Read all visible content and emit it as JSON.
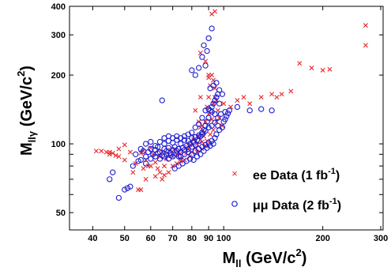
{
  "chart_data": {
    "type": "scatter",
    "xlabel": {
      "main": "M",
      "sub": "ll",
      "unit_open": " (GeV/c",
      "unit_sup": "2",
      "unit_close": ")"
    },
    "ylabel": {
      "main": "M",
      "sub": "llγ",
      "unit_open": " (GeV/c",
      "unit_sup": "2",
      "unit_close": ")"
    },
    "x_scale": "log",
    "y_scale": "log",
    "xlim": [
      34,
      305
    ],
    "ylim": [
      42,
      400
    ],
    "x_ticks": [
      {
        "v": 40,
        "label": "40"
      },
      {
        "v": 50,
        "label": "50"
      },
      {
        "v": 60,
        "label": "60"
      },
      {
        "v": 70,
        "label": "70"
      },
      {
        "v": 80,
        "label": "80"
      },
      {
        "v": 90,
        "label": "90"
      },
      {
        "v": 100,
        "label": "100"
      },
      {
        "v": 200,
        "label": "200"
      },
      {
        "v": 300,
        "label": "300"
      }
    ],
    "y_ticks": [
      {
        "v": 50,
        "label": "50"
      },
      {
        "v": 100,
        "label": "100"
      },
      {
        "v": 200,
        "label": "200"
      },
      {
        "v": 300,
        "label": "300"
      },
      {
        "v": 400,
        "label": "400"
      }
    ],
    "series": [
      {
        "name": "ee Data (1 fb",
        "name_sup": "-1",
        "name_close": ")",
        "marker": "x",
        "color": "#e8262b",
        "points": [
          [
            41,
            93
          ],
          [
            42.5,
            93
          ],
          [
            44,
            92
          ],
          [
            45,
            90
          ],
          [
            46,
            91
          ],
          [
            47,
            89
          ],
          [
            48,
            95
          ],
          [
            50,
            99
          ],
          [
            52,
            92
          ],
          [
            53,
            75
          ],
          [
            55,
            63
          ],
          [
            56,
            91
          ],
          [
            57,
            93
          ],
          [
            58,
            85
          ],
          [
            59,
            80
          ],
          [
            60,
            96
          ],
          [
            61,
            90
          ],
          [
            62,
            83
          ],
          [
            63,
            78
          ],
          [
            64,
            88
          ],
          [
            65,
            92
          ],
          [
            66,
            80
          ],
          [
            67,
            86
          ],
          [
            68,
            90
          ],
          [
            69,
            94
          ],
          [
            70,
            88
          ],
          [
            71,
            95
          ],
          [
            72,
            90
          ],
          [
            73,
            92
          ],
          [
            74,
            86
          ],
          [
            75,
            93
          ],
          [
            76,
            97
          ],
          [
            77,
            91
          ],
          [
            78,
            95
          ],
          [
            79,
            99
          ],
          [
            80,
            92
          ],
          [
            81,
            104
          ],
          [
            82,
            96
          ],
          [
            83,
            100
          ],
          [
            84,
            108
          ],
          [
            85,
            118
          ],
          [
            86,
            102
          ],
          [
            87,
            112
          ],
          [
            88,
            125
          ],
          [
            89,
            145
          ],
          [
            90,
            160
          ],
          [
            91,
            180
          ],
          [
            92,
            200
          ],
          [
            93,
            190
          ],
          [
            94,
            175
          ],
          [
            95,
            155
          ],
          [
            96,
            140
          ],
          [
            92,
            370
          ],
          [
            94,
            380
          ],
          [
            85,
            250
          ],
          [
            88,
            230
          ],
          [
            90,
            200
          ],
          [
            90,
            195
          ],
          [
            85,
            160
          ],
          [
            82,
            140
          ],
          [
            100,
            150
          ],
          [
            105,
            145
          ],
          [
            110,
            155
          ],
          [
            115,
            160
          ],
          [
            120,
            150
          ],
          [
            130,
            160
          ],
          [
            140,
            165
          ],
          [
            145,
            160
          ],
          [
            150,
            165
          ],
          [
            160,
            170
          ],
          [
            170,
            225
          ],
          [
            185,
            215
          ],
          [
            200,
            210
          ],
          [
            210,
            212
          ],
          [
            270,
            330
          ],
          [
            270,
            270
          ],
          [
            56,
            63
          ],
          [
            58,
            70
          ],
          [
            62,
            72
          ],
          [
            65,
            70
          ],
          [
            68,
            75
          ],
          [
            60,
            80
          ],
          [
            72,
            82
          ],
          [
            76,
            85
          ],
          [
            74,
            84
          ],
          [
            79,
            88
          ],
          [
            83,
            92
          ],
          [
            86,
            95
          ],
          [
            88,
            98
          ],
          [
            45,
            92
          ],
          [
            48,
            88
          ],
          [
            50,
            85
          ],
          [
            54,
            82
          ],
          [
            57,
            78
          ],
          [
            64,
            75
          ],
          [
            66,
            73
          ],
          [
            70,
            80
          ],
          [
            95,
            125
          ],
          [
            97,
            130
          ],
          [
            99,
            120
          ],
          [
            91,
            110
          ],
          [
            93,
            115
          ],
          [
            89,
            103
          ],
          [
            87,
            108
          ],
          [
            86,
            120
          ],
          [
            84,
            125
          ],
          [
            90,
            135
          ],
          [
            92,
            128
          ],
          [
            93,
            150
          ],
          [
            94,
            160
          ]
        ]
      },
      {
        "name": "μμ Data (2 fb",
        "name_sup": "-1",
        "name_close": ")",
        "marker": "o",
        "color": "#1d1dd1",
        "points": [
          [
            45,
            70
          ],
          [
            46,
            75
          ],
          [
            48,
            58
          ],
          [
            50,
            63
          ],
          [
            51,
            64
          ],
          [
            52,
            65
          ],
          [
            53,
            80
          ],
          [
            54,
            90
          ],
          [
            55,
            84
          ],
          [
            56,
            95
          ],
          [
            57,
            93
          ],
          [
            58,
            88
          ],
          [
            59,
            92
          ],
          [
            60,
            95
          ],
          [
            61,
            90
          ],
          [
            62,
            94
          ],
          [
            63,
            97
          ],
          [
            64,
            92
          ],
          [
            65,
            89
          ],
          [
            66,
            95
          ],
          [
            67,
            93
          ],
          [
            68,
            96
          ],
          [
            69,
            91
          ],
          [
            70,
            94
          ],
          [
            71,
            97
          ],
          [
            72,
            93
          ],
          [
            73,
            95
          ],
          [
            74,
            92
          ],
          [
            75,
            96
          ],
          [
            76,
            94
          ],
          [
            77,
            98
          ],
          [
            78,
            95
          ],
          [
            79,
            100
          ],
          [
            80,
            97
          ],
          [
            81,
            102
          ],
          [
            82,
            99
          ],
          [
            83,
            104
          ],
          [
            84,
            103
          ],
          [
            85,
            108
          ],
          [
            86,
            110
          ],
          [
            87,
            115
          ],
          [
            88,
            120
          ],
          [
            89,
            125
          ],
          [
            90,
            130
          ],
          [
            91,
            140
          ],
          [
            92,
            145
          ],
          [
            93,
            150
          ],
          [
            94,
            155
          ],
          [
            95,
            160
          ],
          [
            96,
            165
          ],
          [
            97,
            150
          ],
          [
            92,
            320
          ],
          [
            90,
            290
          ],
          [
            87,
            270
          ],
          [
            89,
            255
          ],
          [
            86,
            240
          ],
          [
            84,
            215
          ],
          [
            80,
            210
          ],
          [
            88,
            220
          ],
          [
            82,
            200
          ],
          [
            91,
            175
          ],
          [
            93,
            180
          ],
          [
            95,
            185
          ],
          [
            97,
            172
          ],
          [
            99,
            165
          ],
          [
            104,
            140
          ],
          [
            110,
            145
          ],
          [
            120,
            140
          ],
          [
            130,
            142
          ],
          [
            140,
            140
          ],
          [
            65,
            155
          ],
          [
            62,
            98
          ],
          [
            64,
            102
          ],
          [
            66,
            100
          ],
          [
            68,
            103
          ],
          [
            70,
            101
          ],
          [
            72,
            104
          ],
          [
            74,
            100
          ],
          [
            76,
            104
          ],
          [
            78,
            103
          ],
          [
            80,
            106
          ],
          [
            82,
            107
          ],
          [
            84,
            109
          ],
          [
            86,
            112
          ],
          [
            88,
            114
          ],
          [
            90,
            118
          ],
          [
            92,
            120
          ],
          [
            94,
            124
          ],
          [
            96,
            130
          ],
          [
            98,
            135
          ],
          [
            101,
            138
          ],
          [
            100,
            125
          ],
          [
            56,
            85
          ],
          [
            58,
            82
          ],
          [
            60,
            86
          ],
          [
            62,
            88
          ],
          [
            64,
            86
          ],
          [
            66,
            88
          ],
          [
            68,
            86
          ],
          [
            70,
            88
          ],
          [
            72,
            90
          ],
          [
            74,
            88
          ],
          [
            76,
            90
          ],
          [
            78,
            92
          ],
          [
            80,
            90
          ],
          [
            82,
            93
          ],
          [
            84,
            95
          ],
          [
            86,
            97
          ],
          [
            88,
            99
          ],
          [
            90,
            101
          ],
          [
            92,
            103
          ],
          [
            94,
            106
          ],
          [
            71,
            78
          ],
          [
            73,
            80
          ],
          [
            75,
            82
          ],
          [
            77,
            84
          ],
          [
            79,
            86
          ],
          [
            81,
            85
          ],
          [
            83,
            88
          ],
          [
            85,
            90
          ],
          [
            87,
            93
          ],
          [
            89,
            96
          ],
          [
            91,
            98
          ],
          [
            93,
            100
          ],
          [
            95,
            110
          ],
          [
            97,
            115
          ],
          [
            99,
            118
          ],
          [
            101,
            128
          ],
          [
            102,
            132
          ],
          [
            103,
            136
          ],
          [
            96,
            120
          ],
          [
            94,
            135
          ],
          [
            92,
            138
          ],
          [
            90,
            142
          ],
          [
            88,
            140
          ],
          [
            86,
            130
          ],
          [
            84,
            122
          ],
          [
            82,
            118
          ],
          [
            80,
            112
          ],
          [
            78,
            110
          ],
          [
            76,
            108
          ],
          [
            74,
            106
          ],
          [
            72,
            108
          ],
          [
            70,
            106
          ],
          [
            68,
            108
          ],
          [
            66,
            106
          ],
          [
            60,
            102
          ],
          [
            58,
            100
          ],
          [
            63,
            91
          ],
          [
            67,
            90
          ],
          [
            69,
            89
          ],
          [
            73,
            88
          ]
        ]
      }
    ]
  }
}
